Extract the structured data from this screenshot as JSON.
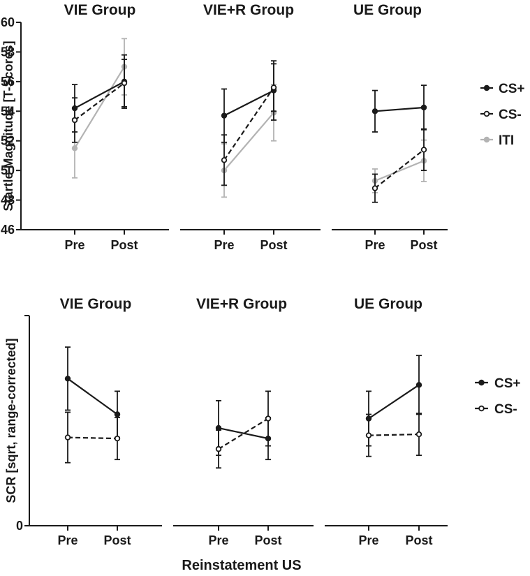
{
  "chart_data": [
    {
      "type": "line",
      "ylabel": "Startle Magnitude [T-Scores]",
      "ylim": [
        46,
        60
      ],
      "yticks": [
        46,
        48,
        50,
        52,
        54,
        56,
        58,
        60
      ],
      "categories": [
        "Pre",
        "Post"
      ],
      "groups": [
        {
          "title": "VIE Group",
          "series": [
            {
              "name": "CS+",
              "values": [
                54.2,
                56.0
              ],
              "errors": [
                1.6,
                1.8
              ]
            },
            {
              "name": "CS-",
              "values": [
                53.4,
                55.9
              ],
              "errors": [
                1.5,
                1.6
              ]
            },
            {
              "name": "ITI",
              "values": [
                51.5,
                57.0
              ],
              "errors": [
                2.0,
                1.9
              ]
            }
          ]
        },
        {
          "title": "VIE+R Group",
          "series": [
            {
              "name": "CS+",
              "values": [
                53.7,
                55.4
              ],
              "errors": [
                1.8,
                2.0
              ]
            },
            {
              "name": "CS-",
              "values": [
                50.7,
                55.6
              ],
              "errors": [
                1.7,
                1.6
              ]
            },
            {
              "name": "ITI",
              "values": [
                50.0,
                53.9
              ],
              "errors": [
                1.8,
                1.9
              ]
            }
          ]
        },
        {
          "title": "UE Group",
          "series": [
            {
              "name": "CS+",
              "values": [
                54.0,
                54.25
              ],
              "errors": [
                1.4,
                1.5
              ]
            },
            {
              "name": "CS-",
              "values": [
                48.8,
                51.4
              ],
              "errors": [
                0.95,
                1.4
              ]
            },
            {
              "name": "ITI",
              "values": [
                49.3,
                50.65
              ],
              "errors": [
                0.8,
                1.4
              ]
            }
          ]
        }
      ],
      "legend": [
        "CS+",
        "CS-",
        "ITI"
      ]
    },
    {
      "type": "line",
      "ylabel": "SCR [sqrt, range-corrected]",
      "ylim": [
        0,
        1
      ],
      "categories": [
        "Pre",
        "Post"
      ],
      "groups": [
        {
          "title": "VIE Group",
          "series": [
            {
              "name": "CS+",
              "values": [
                0.7,
                0.53
              ],
              "errors": [
                0.15,
                0.11
              ]
            },
            {
              "name": "CS-",
              "values": [
                0.42,
                0.415
              ],
              "errors": [
                0.12,
                0.1
              ]
            }
          ]
        },
        {
          "title": "VIE+R Group",
          "series": [
            {
              "name": "CS+",
              "values": [
                0.465,
                0.415
              ],
              "errors": [
                0.13,
                0.1
              ]
            },
            {
              "name": "CS-",
              "values": [
                0.365,
                0.51
              ],
              "errors": [
                0.09,
                0.13
              ]
            }
          ]
        },
        {
          "title": "UE Group",
          "series": [
            {
              "name": "CS+",
              "values": [
                0.51,
                0.67
              ],
              "errors": [
                0.13,
                0.14
              ]
            },
            {
              "name": "CS-",
              "values": [
                0.43,
                0.435
              ],
              "errors": [
                0.1,
                0.1
              ]
            }
          ]
        }
      ],
      "legend": [
        "CS+",
        "CS-"
      ],
      "xlabel": "Reinstatement US"
    }
  ]
}
